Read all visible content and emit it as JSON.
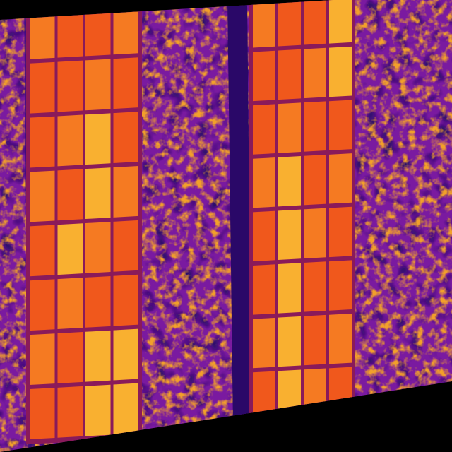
{
  "image": {
    "description_kind": "thermal-aerial",
    "palette": {
      "background": "#000000",
      "ground_dark": "#3a0a7a",
      "ground_mid": "#7a1aa0",
      "ground_hot": "#e8901c",
      "panel_base": "#f0581c",
      "panel_warm": "#f57a22",
      "panel_hot": "#f9b030",
      "panel_frame": "#8a1a5a",
      "shadow_strip": "#2a0868"
    },
    "arrays": [
      {
        "name": "left-panel-array",
        "columns": 4,
        "rows": 8,
        "hot_cells": [
          [
            2,
            2
          ],
          [
            2,
            3
          ],
          [
            1,
            4
          ],
          [
            3,
            6
          ],
          [
            2,
            6
          ],
          [
            3,
            7
          ],
          [
            2,
            7
          ]
        ]
      },
      {
        "name": "right-panel-array",
        "columns": 4,
        "rows": 8,
        "hot_cells": [
          [
            1,
            3
          ],
          [
            1,
            4
          ],
          [
            1,
            5
          ],
          [
            1,
            6
          ],
          [
            1,
            7
          ],
          [
            3,
            0
          ],
          [
            3,
            1
          ]
        ]
      }
    ]
  }
}
